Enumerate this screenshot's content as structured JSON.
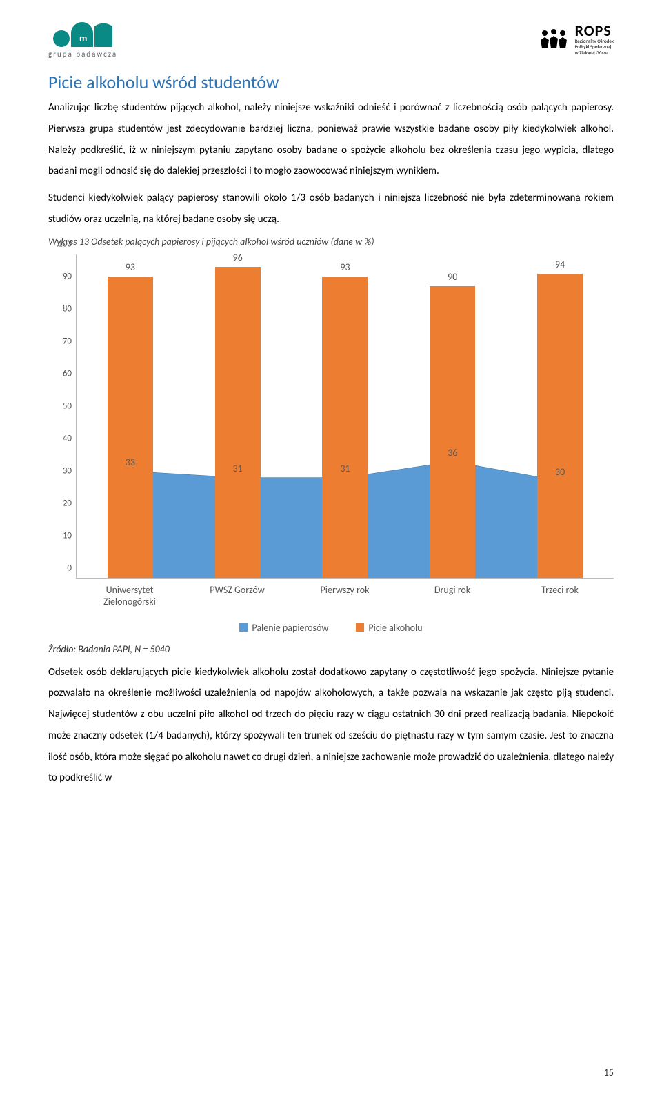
{
  "logos": {
    "left_text": "grupa badawcza",
    "right_main": "ROPS",
    "right_sub1": "Regionalny Ośrodek",
    "right_sub2": "Polityki Społecznej",
    "right_sub3": "w Zielonej Górze"
  },
  "section_title": "Picie alkoholu wśród studentów",
  "paragraph1": "Analizując liczbę studentów pijących alkohol, należy niniejsze wskaźniki odnieść i porównać z liczebnością osób palących papierosy. Pierwsza grupa studentów jest zdecydowanie bardziej liczna, ponieważ prawie wszystkie badane osoby piły kiedykolwiek alkohol. Należy podkreślić, iż w niniejszym pytaniu zapytano osoby badane o spożycie alkoholu bez określenia czasu jego wypicia, dlatego badani mogli odnosić się do dalekiej przeszłości i to mogło zaowocować niniejszym wynikiem.",
  "paragraph2": "Studenci kiedykolwiek palący papierosy stanowili około 1/3 osób badanych i niniejsza liczebność nie była zdeterminowana rokiem studiów oraz uczelnią, na której badane osoby się uczą.",
  "chart_caption": "Wykres 13 Odsetek palących papierosy i pijących alkohol wśród uczniów (dane w %)",
  "chart": {
    "type": "bar-with-area",
    "categories": [
      "Uniwersytet Zielonogórski",
      "PWSZ Gorzów",
      "Pierwszy rok",
      "Drugi rok",
      "Trzeci rok"
    ],
    "bar_values": [
      93,
      96,
      93,
      90,
      94
    ],
    "area_values": [
      33,
      31,
      31,
      36,
      30
    ],
    "bar_color": "#ed7d31",
    "area_fill": "#5b9bd5",
    "area_line": "#41719c",
    "y_ticks": [
      0,
      10,
      20,
      30,
      40,
      50,
      60,
      70,
      80,
      90,
      100
    ],
    "ymax": 100,
    "label_color": "#595959",
    "axis_color": "#bfbfbf",
    "label_fontsize": 14,
    "legend": [
      "Palenie papierosów",
      "Picie alkoholu"
    ],
    "legend_colors": [
      "#5b9bd5",
      "#ed7d31"
    ]
  },
  "source_text": "Źródło: Badania PAPI, N = 5040",
  "paragraph3": "Odsetek osób deklarujących picie kiedykolwiek alkoholu został dodatkowo zapytany o częstotliwość jego spożycia. Niniejsze pytanie pozwalało na określenie możliwości uzależnienia od napojów alkoholowych, a także pozwala na wskazanie jak często piją studenci. Najwięcej studentów z obu uczelni piło alkohol od trzech do pięciu razy w ciągu ostatnich 30 dni przed realizacją badania. Niepokoić może znaczny odsetek (1/4 badanych), którzy spożywali ten trunek od sześciu do piętnastu razy w tym samym czasie. Jest to znaczna ilość osób, która może sięgać po alkoholu nawet co drugi dzień, a niniejsze zachowanie może prowadzić do uzależnienia, dlatego należy to podkreślić w",
  "page_number": "15"
}
